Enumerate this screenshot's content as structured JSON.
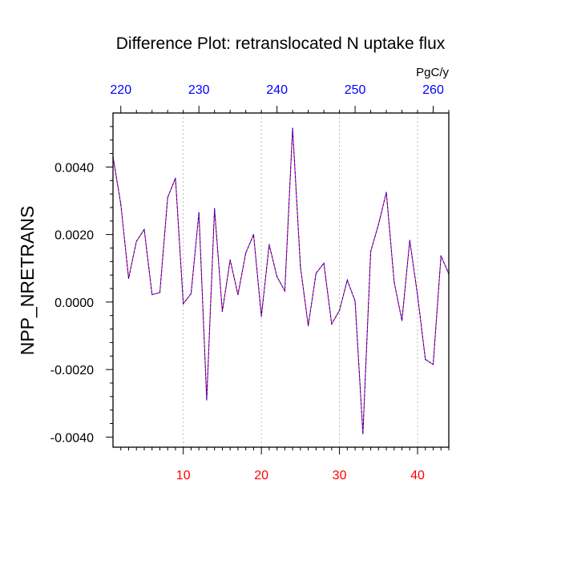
{
  "chart_data": {
    "type": "line",
    "title": "Difference Plot: retranslocated N uptake flux",
    "ylabel": "NPP_NRETRANS",
    "units_label": "PgC/y",
    "xlim": [
      1,
      44
    ],
    "ylim": [
      -0.0043,
      0.0056
    ],
    "grid": "vertical dashed at major bottom ticks",
    "x_bottom_ticks": [
      10,
      20,
      30,
      40
    ],
    "x_bottom_tick_labels": [
      "10",
      "20",
      "30",
      "40"
    ],
    "x_top_ticks": [
      2,
      12,
      22,
      32,
      42
    ],
    "x_top_tick_labels": [
      "220",
      "230",
      "240",
      "250",
      "260"
    ],
    "y_ticks": [
      0.004,
      0.002,
      0.0,
      -0.002,
      -0.004
    ],
    "y_tick_labels": [
      "0.0040",
      "0.0020",
      "0.0000",
      "-0.0020",
      "-0.0040"
    ],
    "colors": {
      "bottom_ticks": "#ff0000",
      "top_ticks": "#0000ff",
      "line_a": "#ff0000",
      "line_b": "#0000ff"
    },
    "x": [
      1,
      2,
      3,
      4,
      5,
      6,
      7,
      8,
      9,
      10,
      11,
      12,
      13,
      14,
      15,
      16,
      17,
      18,
      19,
      20,
      21,
      22,
      23,
      24,
      25,
      26,
      27,
      28,
      29,
      30,
      31,
      32,
      33,
      34,
      35,
      36,
      37,
      38,
      39,
      40,
      41,
      42,
      43,
      44
    ],
    "series": [
      {
        "values": [
          0.0043,
          0.0029,
          0.0007,
          0.0018,
          0.00215,
          0.00022,
          0.00028,
          0.0031,
          0.00367,
          -5e-05,
          0.00025,
          0.00265,
          -0.0029,
          0.00277,
          -0.00028,
          0.00125,
          0.00022,
          0.00145,
          0.002,
          -0.00042,
          0.0017,
          0.00075,
          0.00033,
          0.00515,
          0.00105,
          -0.0007,
          0.00085,
          0.00115,
          -0.00065,
          -0.00025,
          0.00065,
          3e-05,
          -0.0039,
          0.0015,
          0.0023,
          0.00325,
          0.0006,
          -0.00055,
          0.00183,
          0.0002,
          -0.0017,
          -0.00185,
          0.00137,
          0.00083
        ]
      }
    ]
  }
}
